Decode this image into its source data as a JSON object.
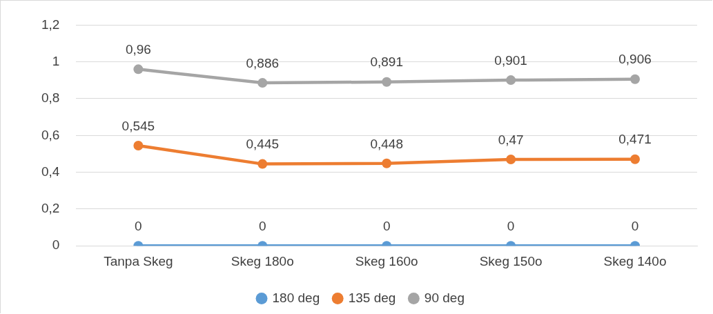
{
  "chart_data": {
    "type": "line",
    "categories": [
      "Tanpa Skeg",
      "Skeg 180o",
      "Skeg 160o",
      "Skeg 150o",
      "Skeg 140o"
    ],
    "series": [
      {
        "name": "180 deg",
        "color": "#5b9bd5",
        "values": [
          0,
          0,
          0,
          0,
          0
        ],
        "value_labels": [
          "0",
          "0",
          "0",
          "0",
          "0"
        ]
      },
      {
        "name": "135 deg",
        "color": "#ed7d31",
        "values": [
          0.545,
          0.445,
          0.448,
          0.47,
          0.471
        ],
        "value_labels": [
          "0,545",
          "0,445",
          "0,448",
          "0,47",
          "0,471"
        ]
      },
      {
        "name": "90 deg",
        "color": "#a5a5a5",
        "values": [
          0.96,
          0.886,
          0.891,
          0.901,
          0.906
        ],
        "value_labels": [
          "0,96",
          "0,886",
          "0,891",
          "0,901",
          "0,906"
        ]
      }
    ],
    "ylim": [
      0,
      1.2
    ],
    "yticks": [
      {
        "value": 0,
        "label": "0"
      },
      {
        "value": 0.2,
        "label": "0,2"
      },
      {
        "value": 0.4,
        "label": "0,4"
      },
      {
        "value": 0.6,
        "label": "0,6"
      },
      {
        "value": 0.8,
        "label": "0,8"
      },
      {
        "value": 1,
        "label": "1"
      },
      {
        "value": 1.2,
        "label": "1,2"
      }
    ],
    "grid": "y",
    "legend": "bottom",
    "marker": "circle",
    "line_style": "solid"
  }
}
